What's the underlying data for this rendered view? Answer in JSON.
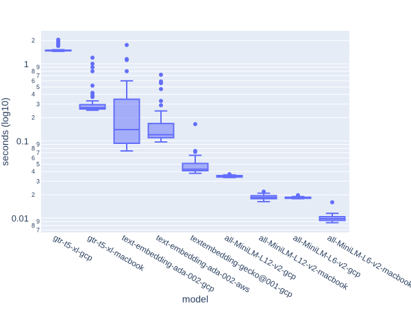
{
  "chart_data": {
    "type": "box",
    "title": "",
    "xlabel": "model",
    "ylabel": "seconds (log10)",
    "yscale": "log",
    "ylim": [
      0.0065,
      2.67
    ],
    "grid": true,
    "legend": "none",
    "colors": {
      "box": "#636efa",
      "plot_bg": "#e5ecf6",
      "grid": "#ffffff",
      "text": "#2a3f5f"
    },
    "y_major_ticks": [
      {
        "v": 0.01,
        "label": "0.01"
      },
      {
        "v": 0.1,
        "label": "0.1"
      },
      {
        "v": 1,
        "label": "1"
      }
    ],
    "y_minor_ticks": [
      {
        "v": 0.007,
        "label": "7"
      },
      {
        "v": 0.008,
        "label": "8"
      },
      {
        "v": 0.009,
        "label": "9"
      },
      {
        "v": 0.02,
        "label": "2"
      },
      {
        "v": 0.03,
        "label": "3"
      },
      {
        "v": 0.04,
        "label": "4"
      },
      {
        "v": 0.05,
        "label": "5"
      },
      {
        "v": 0.06,
        "label": "6"
      },
      {
        "v": 0.07,
        "label": "7"
      },
      {
        "v": 0.08,
        "label": "8"
      },
      {
        "v": 0.09,
        "label": "9"
      },
      {
        "v": 0.2,
        "label": "2"
      },
      {
        "v": 0.3,
        "label": "3"
      },
      {
        "v": 0.4,
        "label": "4"
      },
      {
        "v": 0.5,
        "label": "5"
      },
      {
        "v": 0.6,
        "label": "6"
      },
      {
        "v": 0.7,
        "label": "7"
      },
      {
        "v": 0.8,
        "label": "8"
      },
      {
        "v": 0.9,
        "label": "9"
      },
      {
        "v": 2,
        "label": "2"
      }
    ],
    "categories": [
      "gtr-t5-xl-gcp",
      "gtr-t5-xl-macbook",
      "text-embedding-ada-002-gcp",
      "text-embedding-ada-002-aws",
      "textembedding-gecko@001-gcp",
      "all-MiniLM-L12-v2-gcp",
      "all-MiniLM-L12-v2-macbook",
      "all-MiniLM-L6-v2-gcp",
      "all-MiniLM-L6-v2-macbook"
    ],
    "boxes": [
      {
        "lower": 1.45,
        "q1": 1.47,
        "median": 1.48,
        "q3": 1.5,
        "upper": 1.52,
        "outliers": [
          1.7,
          1.75,
          1.8,
          1.9,
          1.95,
          2.05
        ]
      },
      {
        "lower": 0.25,
        "q1": 0.259,
        "median": 0.27,
        "q3": 0.295,
        "upper": 0.33,
        "outliers": [
          0.37,
          0.38,
          0.4,
          0.42,
          0.52,
          0.8,
          0.9,
          1.0,
          1.2
        ]
      },
      {
        "lower": 0.074,
        "q1": 0.093,
        "median": 0.14,
        "q3": 0.347,
        "upper": 0.6,
        "outliers": [
          0.8,
          1.12,
          1.15,
          1.75
        ]
      },
      {
        "lower": 0.097,
        "q1": 0.11,
        "median": 0.12,
        "q3": 0.168,
        "upper": 0.245,
        "outliers": [
          0.29,
          0.33,
          0.47,
          0.56,
          0.59,
          0.72
        ]
      },
      {
        "lower": 0.038,
        "q1": 0.041,
        "median": 0.043,
        "q3": 0.051,
        "upper": 0.065,
        "outliers": [
          0.072,
          0.074,
          0.165
        ]
      },
      {
        "lower": 0.0335,
        "q1": 0.034,
        "median": 0.0348,
        "q3": 0.0355,
        "upper": 0.0362,
        "outliers": [
          0.037
        ]
      },
      {
        "lower": 0.0163,
        "q1": 0.0178,
        "median": 0.0185,
        "q3": 0.0195,
        "upper": 0.021,
        "outliers": [
          0.022
        ]
      },
      {
        "lower": 0.0178,
        "q1": 0.018,
        "median": 0.0183,
        "q3": 0.0186,
        "upper": 0.019,
        "outliers": [
          0.0198
        ]
      },
      {
        "lower": 0.0087,
        "q1": 0.0093,
        "median": 0.0098,
        "q3": 0.0104,
        "upper": 0.0115,
        "outliers": [
          0.016
        ]
      }
    ]
  }
}
